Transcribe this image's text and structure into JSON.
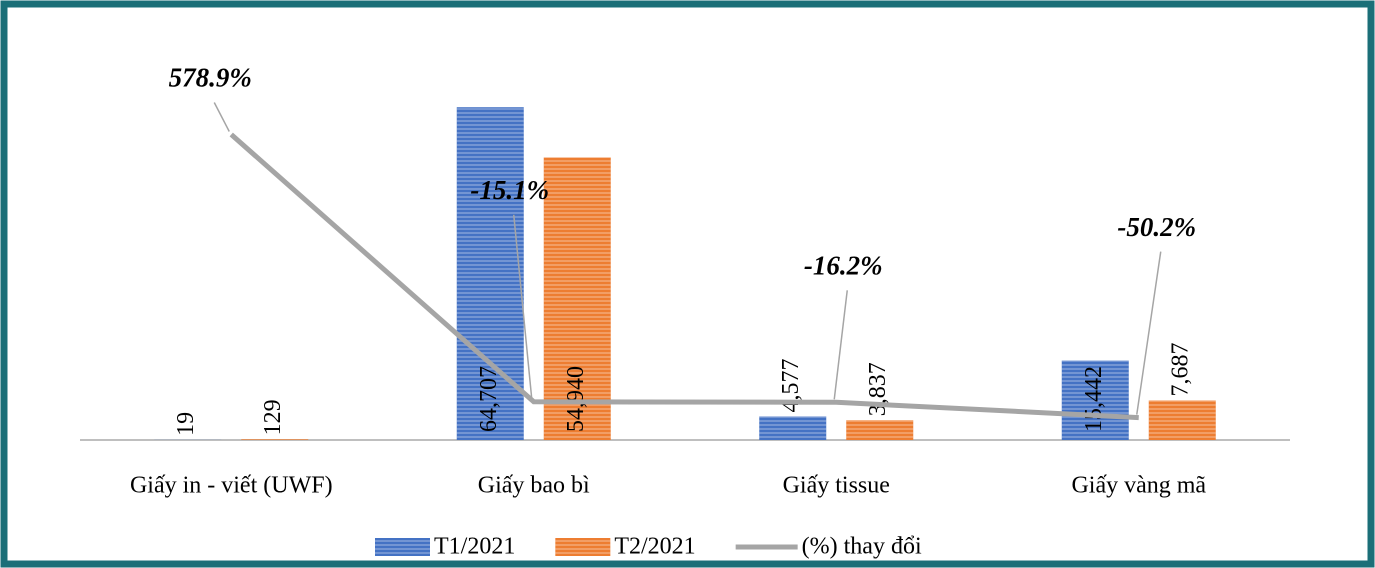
{
  "chart_data": {
    "type": "bar",
    "categories": [
      "Giấy in - viết (UWF)",
      "Giấy bao bì",
      "Giấy tissue",
      "Giấy vàng mã"
    ],
    "series": [
      {
        "name": "T1/2021",
        "type": "bar",
        "color": "#4472c4",
        "values": [
          19,
          64707,
          4577,
          15442
        ],
        "value_labels": [
          "19",
          "64,707",
          "4,577",
          "15,442"
        ]
      },
      {
        "name": "T2/2021",
        "type": "bar",
        "color": "#ed7d31",
        "values": [
          129,
          54940,
          3837,
          7687
        ],
        "value_labels": [
          "129",
          "54,940",
          "3,837",
          "7,687"
        ]
      },
      {
        "name": "(%) thay đổi",
        "type": "line",
        "axis": "y2",
        "color": "#a5a5a5",
        "values": [
          578.9,
          -15.1,
          -16.2,
          -50.2
        ],
        "value_labels": [
          "578.9%",
          "-15.1%",
          "-16.2%",
          "-50.2%"
        ]
      }
    ],
    "ylim": [
      0,
      70000
    ],
    "y2lim": [
      -100,
      700
    ],
    "legend": "bottom"
  }
}
